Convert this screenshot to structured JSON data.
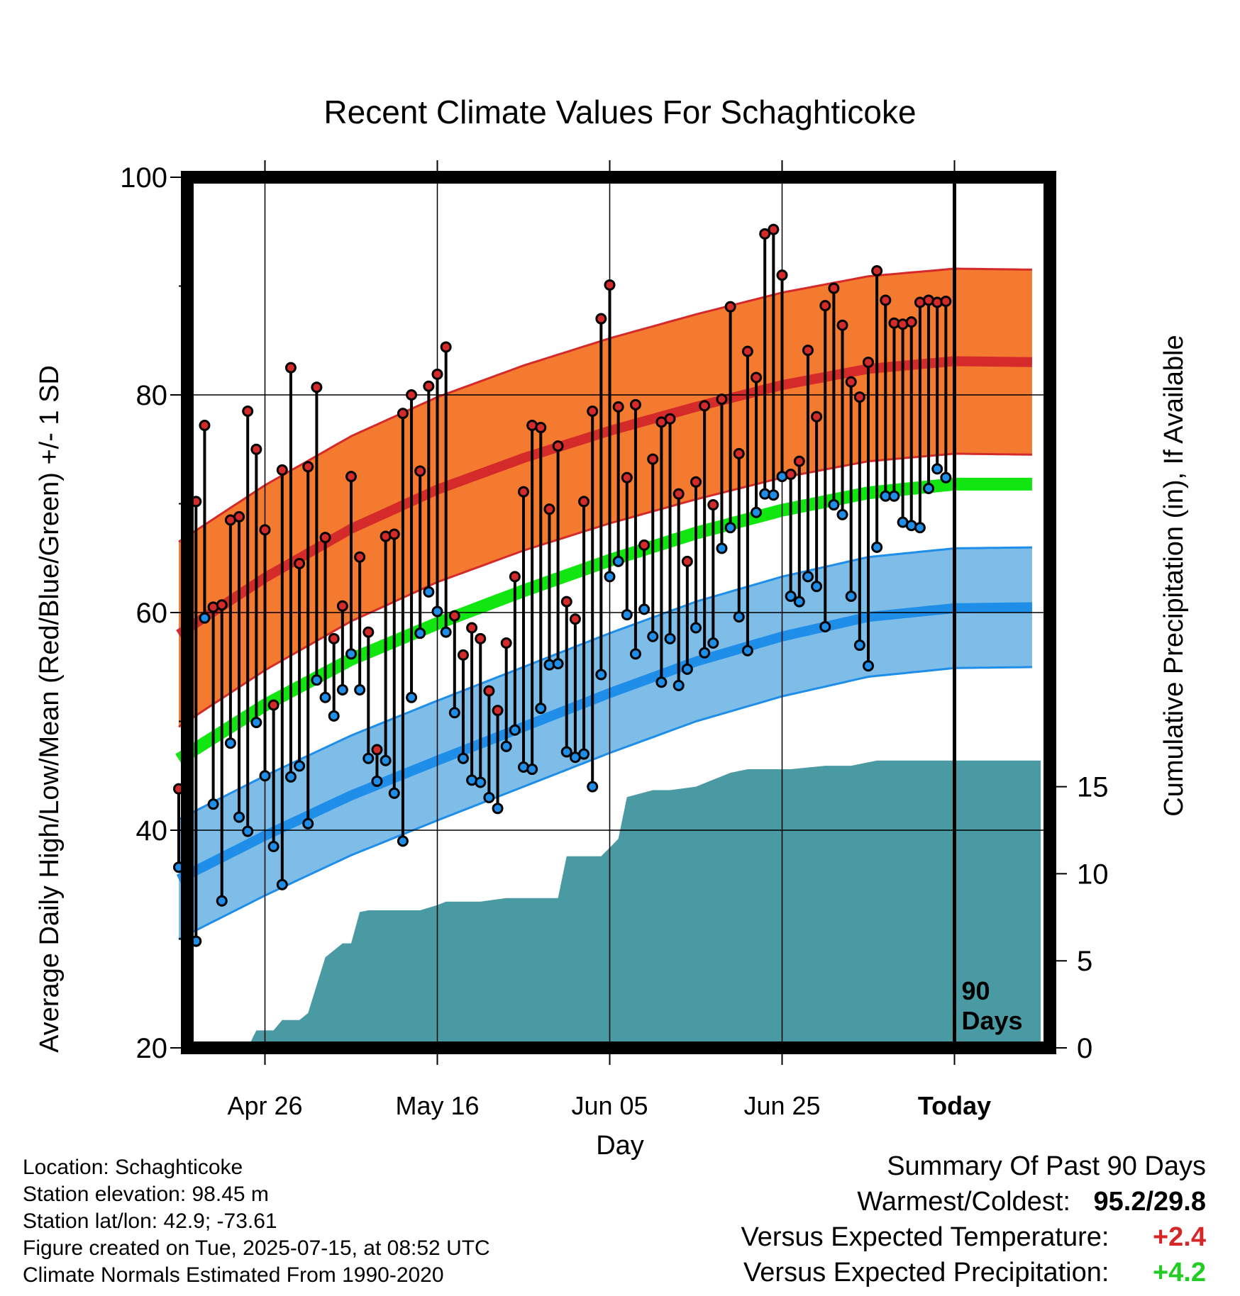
{
  "chart_data": {
    "type": "line",
    "title": "Recent Climate Values For Schaghticoke",
    "xlabel": "Day",
    "ylabel": "Average Daily High/Low/Mean (Red/Blue/Green) +/- 1 SD",
    "y2label": "Cumulative Precipitation (in), If Available",
    "ylim": [
      20,
      100
    ],
    "y2lim": [
      0,
      50
    ],
    "yticks": [
      "20",
      "40",
      "60",
      "80",
      "100"
    ],
    "y2ticks": [
      "0",
      "5",
      "10",
      "15"
    ],
    "xlim_days": [
      -90,
      10
    ],
    "xticks": [
      {
        "label": "Apr 26",
        "day": -80
      },
      {
        "label": "May 16",
        "day": -60
      },
      {
        "label": "Jun 05",
        "day": -40
      },
      {
        "label": "Jun 25",
        "day": -20
      },
      {
        "label": "Today",
        "day": 0
      }
    ],
    "today_marker": {
      "day": 0,
      "label_line1": "90",
      "label_line2": "Days"
    },
    "grid": true,
    "normals": {
      "day": [
        -90,
        -80,
        -70,
        -60,
        -50,
        -40,
        -30,
        -20,
        -10,
        0,
        10
      ],
      "high_mean": [
        58.0,
        63.2,
        67.7,
        71.3,
        74.2,
        76.7,
        78.9,
        80.9,
        82.4,
        83.1,
        83.0
      ],
      "high_sd": 8.5,
      "low_mean": [
        35.5,
        39.5,
        43.2,
        46.4,
        49.5,
        52.6,
        55.5,
        57.8,
        59.6,
        60.4,
        60.5
      ],
      "low_sd": 5.5,
      "mean": [
        46.5,
        51.5,
        55.7,
        59.0,
        62.0,
        64.8,
        67.3,
        69.4,
        71.0,
        71.8,
        71.8
      ]
    },
    "series": [
      {
        "name": "High",
        "color": "#d62728",
        "values": [
          43.8,
          56.5,
          70.2,
          77.2,
          60.5,
          60.7,
          68.5,
          68.8,
          78.5,
          75.0,
          67.6,
          51.5,
          73.1,
          82.5,
          64.5,
          73.4,
          80.7,
          66.9,
          57.6,
          60.6,
          72.5,
          65.1,
          58.2,
          47.4,
          67.0,
          67.2,
          78.3,
          80.0,
          73.0,
          80.8,
          81.9,
          84.4,
          59.7,
          56.1,
          58.6,
          57.6,
          52.8,
          51.0,
          57.2,
          63.3,
          71.1,
          77.2,
          77.0,
          69.5,
          75.3,
          61.0,
          59.4,
          70.2,
          78.5,
          87.0,
          90.1,
          78.9,
          72.4,
          79.1,
          66.2,
          74.1,
          77.5,
          77.8,
          70.9,
          64.7,
          72.0,
          79.0,
          69.9,
          79.6,
          88.1,
          74.6,
          84.0,
          81.6,
          94.8,
          95.2,
          91.0,
          72.7,
          73.9,
          84.1,
          78.0,
          88.2,
          89.8,
          86.4,
          81.2,
          79.8,
          83.0,
          91.4,
          88.7,
          86.6,
          86.5,
          86.7,
          88.5,
          88.7,
          88.5,
          88.6
        ]
      },
      {
        "name": "Low",
        "color": "#1f8fe0",
        "values": [
          36.6,
          36.6,
          29.8,
          59.5,
          42.4,
          33.5,
          48.0,
          41.2,
          39.9,
          49.9,
          45.0,
          38.5,
          35.0,
          44.9,
          45.9,
          40.6,
          53.8,
          52.2,
          50.5,
          52.9,
          56.2,
          52.9,
          46.6,
          44.5,
          46.4,
          43.4,
          39.0,
          52.2,
          58.1,
          61.9,
          60.1,
          58.2,
          50.8,
          46.6,
          44.6,
          44.4,
          43.0,
          42.0,
          47.7,
          49.2,
          45.8,
          45.6,
          51.2,
          55.2,
          55.3,
          47.2,
          46.7,
          47.0,
          44.0,
          54.3,
          63.3,
          64.7,
          59.8,
          56.2,
          60.3,
          57.8,
          53.6,
          57.6,
          53.3,
          54.8,
          58.6,
          56.3,
          57.2,
          65.9,
          67.8,
          59.6,
          56.5,
          69.2,
          70.9,
          70.8,
          72.5,
          61.5,
          61.0,
          63.3,
          62.4,
          58.7,
          69.9,
          69.0,
          61.5,
          57.0,
          55.1,
          66.0,
          70.7,
          70.7,
          68.3,
          68.0,
          67.8,
          71.4,
          73.2,
          72.4
        ]
      }
    ],
    "precip_cumulative": {
      "day": [
        -90,
        -82,
        -81,
        -79,
        -78,
        -76,
        -75,
        -74,
        -73,
        -71,
        -70,
        -69,
        -68,
        -66,
        -62,
        -60,
        -59,
        -55,
        -52,
        -48,
        -46,
        -45,
        -41,
        -40,
        -39,
        -38,
        -35,
        -33,
        -30,
        -28,
        -26,
        -24,
        -19,
        -15,
        -12,
        -9,
        0,
        10
      ],
      "values": [
        0.0,
        0.0,
        1.0,
        1.0,
        1.6,
        1.6,
        2.0,
        3.6,
        5.2,
        6.0,
        6.0,
        7.8,
        7.9,
        7.9,
        7.9,
        8.2,
        8.4,
        8.4,
        8.6,
        8.6,
        8.6,
        11.0,
        11.0,
        11.5,
        12.0,
        14.4,
        14.8,
        14.8,
        15.0,
        15.4,
        15.8,
        16.0,
        16.0,
        16.2,
        16.2,
        16.5,
        16.5,
        16.5
      ]
    }
  },
  "info": {
    "location": "Location: Schaghticoke",
    "elevation": "Station elevation: 98.45 m",
    "latlon": "Station lat/lon: 42.9; -73.61",
    "created": "Figure created on Tue, 2025-07-15, at 08:52 UTC",
    "normals_period": "Climate Normals Estimated From 1990-2020"
  },
  "summary": {
    "heading": "Summary Of Past 90 Days",
    "warm_cold_label": "Warmest/Coldest:",
    "warm_cold_value": "95.2/29.8",
    "temp_label": "Versus Expected Temperature:",
    "temp_value": "+2.4",
    "temp_color": "#d62728",
    "precip_label": "Versus Expected Precipitation:",
    "precip_value": "+4.2",
    "precip_color": "#22cc22"
  }
}
